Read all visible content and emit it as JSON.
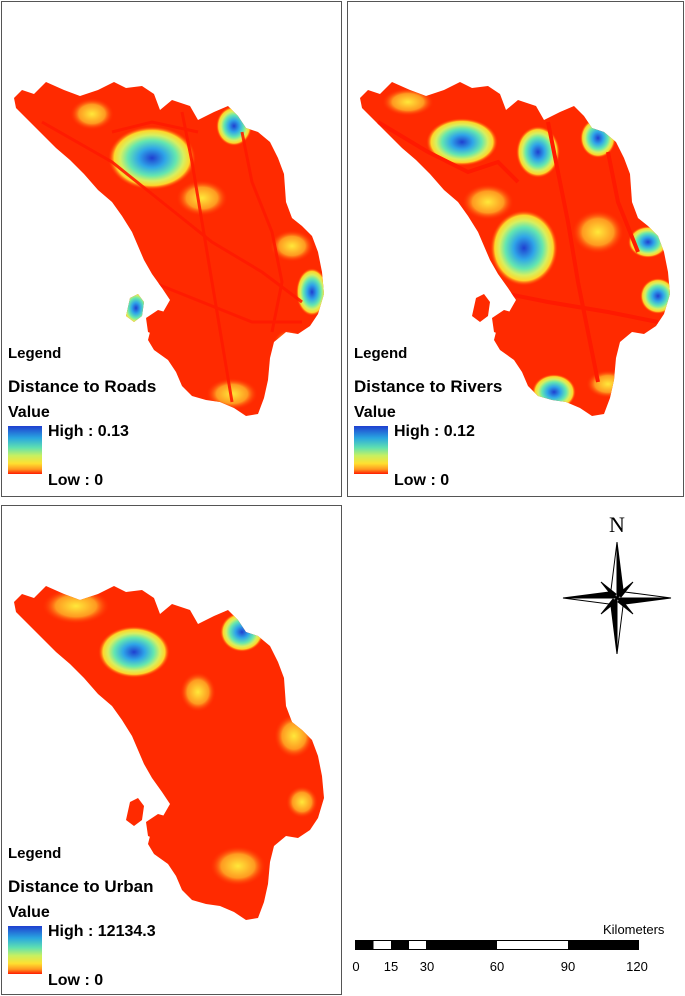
{
  "panels": {
    "roads": {
      "legend": "Legend",
      "title": "Distance to Roads",
      "value_label": "Value",
      "high": "High : 0.13",
      "low": "Low : 0"
    },
    "rivers": {
      "legend": "Legend",
      "title": "Distance to Rivers",
      "value_label": "Value",
      "high": "High : 0.12",
      "low": "Low : 0"
    },
    "urban": {
      "legend": "Legend",
      "title": "Distance to Urban",
      "value_label": "Value",
      "high": "High : 12134.3",
      "low": "Low : 0"
    }
  },
  "north_arrow": {
    "label": "N",
    "icon": "compass-rose-icon"
  },
  "scale_bar": {
    "unit": "Kilometers",
    "ticks": [
      "0",
      "15",
      "30",
      "60",
      "90",
      "120"
    ]
  },
  "color_ramp": {
    "high_color": "#1f3fd0",
    "mid_colors": [
      "#29a6e0",
      "#5fe0b0",
      "#c8f060",
      "#ffe030",
      "#ff9a20"
    ],
    "low_color": "#ff1a00"
  }
}
